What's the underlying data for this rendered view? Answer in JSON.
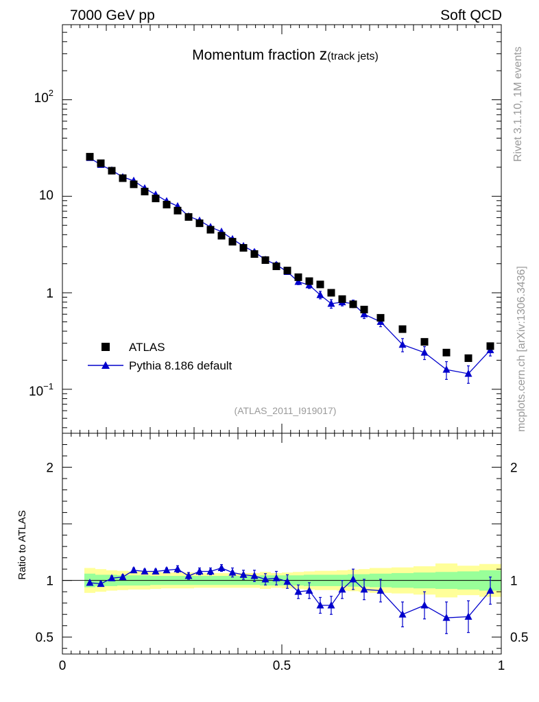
{
  "header": {
    "left": "7000 GeV pp",
    "right": "Soft QCD"
  },
  "side_text": {
    "top": "Rivet 3.1.10,  1M events",
    "bottom": "mcplots.cern.ch [arXiv:1306.3436]"
  },
  "colors": {
    "data": "#000000",
    "mc": "#0000cc",
    "band_inner": "#99ff99",
    "band_outer": "#ffff99",
    "label": "#999999"
  },
  "chart_data": [
    {
      "type": "scatter",
      "title_main": "Momentum fraction ",
      "title_var": "z",
      "title_sub": "(track jets)",
      "analysis_label": "(ATLAS_2011_I919017)",
      "yscale": "log",
      "xlim": [
        0,
        1
      ],
      "ylim": [
        0.035,
        600
      ],
      "ytick_labels": {
        "major_01": "10",
        "major_01_exp": "−1",
        "major_1": "1",
        "major_10": "10",
        "major_100": "10",
        "major_100_exp": "2"
      },
      "legend": {
        "position": "bottom-left",
        "data_label": "ATLAS",
        "mc_label": "Pythia 8.186 default"
      },
      "x": [
        0.0625,
        0.0875,
        0.1125,
        0.1375,
        0.1625,
        0.1875,
        0.2125,
        0.2375,
        0.2625,
        0.2875,
        0.3125,
        0.3375,
        0.3625,
        0.3875,
        0.4125,
        0.4375,
        0.4625,
        0.4875,
        0.5125,
        0.5375,
        0.5625,
        0.5875,
        0.6125,
        0.6375,
        0.6625,
        0.6875,
        0.725,
        0.775,
        0.825,
        0.875,
        0.925,
        0.975
      ],
      "series": [
        {
          "name": "ATLAS",
          "values": [
            25.7,
            22.0,
            18.4,
            15.4,
            13.3,
            11.2,
            9.5,
            8.2,
            7.1,
            6.1,
            5.25,
            4.5,
            3.9,
            3.38,
            2.92,
            2.52,
            2.18,
            1.88,
            1.7,
            1.45,
            1.32,
            1.22,
            1.0,
            0.86,
            0.76,
            0.67,
            0.55,
            0.42,
            0.31,
            0.24,
            0.21,
            0.28
          ]
        },
        {
          "name": "Pythia 8.186 default",
          "values": [
            25.0,
            21.2,
            18.6,
            15.8,
            14.5,
            12.1,
            10.4,
            8.9,
            7.9,
            6.2,
            5.6,
            4.8,
            4.3,
            3.6,
            3.05,
            2.65,
            2.2,
            1.95,
            1.65,
            1.3,
            1.2,
            0.95,
            0.77,
            0.8,
            0.77,
            0.6,
            0.5,
            0.29,
            0.24,
            0.16,
            0.145,
            0.255
          ]
        }
      ]
    },
    {
      "type": "line",
      "ylabel": "Ratio to ATLAS",
      "xlim": [
        0,
        1
      ],
      "ylim": [
        0.35,
        2.3
      ],
      "xtick_labels": [
        "0",
        "0.5",
        "1"
      ],
      "ytick_labels": [
        "0.5",
        "1",
        "2"
      ],
      "ytick_values": [
        0.5,
        1,
        2
      ],
      "band_edges": [
        0.05,
        0.075,
        0.1,
        0.125,
        0.15,
        0.175,
        0.2,
        0.225,
        0.25,
        0.275,
        0.3,
        0.325,
        0.35,
        0.375,
        0.4,
        0.425,
        0.45,
        0.475,
        0.5,
        0.525,
        0.55,
        0.575,
        0.6,
        0.625,
        0.65,
        0.675,
        0.7,
        0.75,
        0.8,
        0.85,
        0.9,
        0.95,
        1.0
      ],
      "band_inner_half": [
        0.06,
        0.05,
        0.05,
        0.045,
        0.045,
        0.045,
        0.04,
        0.04,
        0.04,
        0.04,
        0.04,
        0.04,
        0.04,
        0.04,
        0.04,
        0.04,
        0.045,
        0.045,
        0.045,
        0.045,
        0.05,
        0.05,
        0.05,
        0.05,
        0.055,
        0.055,
        0.06,
        0.065,
        0.07,
        0.075,
        0.08,
        0.09
      ],
      "band_outer_half": [
        0.11,
        0.1,
        0.09,
        0.085,
        0.08,
        0.08,
        0.075,
        0.07,
        0.07,
        0.07,
        0.065,
        0.065,
        0.065,
        0.065,
        0.065,
        0.065,
        0.075,
        0.065,
        0.07,
        0.075,
        0.08,
        0.085,
        0.085,
        0.09,
        0.095,
        0.1,
        0.11,
        0.115,
        0.125,
        0.15,
        0.13,
        0.145
      ],
      "ratio_values": [
        0.98,
        0.97,
        1.02,
        1.03,
        1.09,
        1.08,
        1.08,
        1.09,
        1.1,
        1.04,
        1.08,
        1.08,
        1.11,
        1.07,
        1.05,
        1.04,
        1.01,
        1.02,
        0.99,
        0.9,
        0.91,
        0.78,
        0.78,
        0.92,
        1.01,
        0.92,
        0.91,
        0.7,
        0.78,
        0.67,
        0.68,
        0.91
      ],
      "ratio_errors": [
        0.02,
        0.02,
        0.02,
        0.02,
        0.02,
        0.02,
        0.02,
        0.02,
        0.03,
        0.03,
        0.03,
        0.03,
        0.03,
        0.04,
        0.04,
        0.05,
        0.05,
        0.06,
        0.06,
        0.06,
        0.07,
        0.07,
        0.08,
        0.08,
        0.09,
        0.09,
        0.1,
        0.11,
        0.12,
        0.14,
        0.14,
        0.12
      ]
    }
  ]
}
